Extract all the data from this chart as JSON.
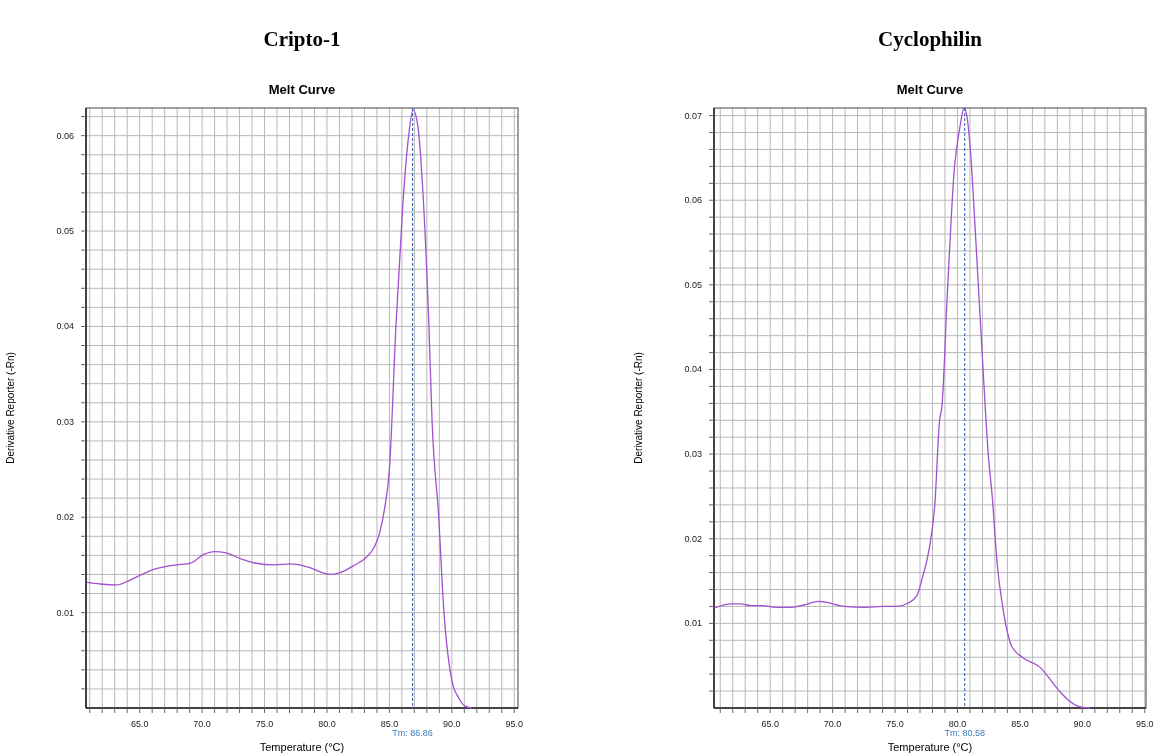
{
  "chart_data": [
    {
      "type": "line",
      "title": "Cripto-1",
      "subtitle": "Melt Curve",
      "xlabel": "Temperature (°C)",
      "ylabel": "Derivative Reporter (-Rn)",
      "grid": true,
      "xlim": [
        60.7,
        95.3
      ],
      "ylim": [
        0,
        0.0629
      ],
      "xticks": [
        {
          "value": 61,
          "label": null
        },
        {
          "value": 62,
          "label": null
        },
        {
          "value": 63,
          "label": null
        },
        {
          "value": 64,
          "label": null
        },
        {
          "value": 65,
          "label": "65.0"
        },
        {
          "value": 66,
          "label": null
        },
        {
          "value": 67,
          "label": null
        },
        {
          "value": 68,
          "label": null
        },
        {
          "value": 69,
          "label": null
        },
        {
          "value": 70,
          "label": "70.0"
        },
        {
          "value": 71,
          "label": null
        },
        {
          "value": 72,
          "label": null
        },
        {
          "value": 73,
          "label": null
        },
        {
          "value": 74,
          "label": null
        },
        {
          "value": 75,
          "label": "75.0"
        },
        {
          "value": 76,
          "label": null
        },
        {
          "value": 77,
          "label": null
        },
        {
          "value": 78,
          "label": null
        },
        {
          "value": 79,
          "label": null
        },
        {
          "value": 80,
          "label": "80.0"
        },
        {
          "value": 81,
          "label": null
        },
        {
          "value": 82,
          "label": null
        },
        {
          "value": 83,
          "label": null
        },
        {
          "value": 84,
          "label": null
        },
        {
          "value": 85,
          "label": "85.0"
        },
        {
          "value": 86,
          "label": null
        },
        {
          "value": 87,
          "label": null
        },
        {
          "value": 88,
          "label": null
        },
        {
          "value": 89,
          "label": null
        },
        {
          "value": 90,
          "label": "90.0"
        },
        {
          "value": 91,
          "label": null
        },
        {
          "value": 92,
          "label": null
        },
        {
          "value": 93,
          "label": null
        },
        {
          "value": 94,
          "label": null
        },
        {
          "value": 95,
          "label": "95.0"
        }
      ],
      "yticks": [
        {
          "value": 0.002,
          "label": null
        },
        {
          "value": 0.004,
          "label": null
        },
        {
          "value": 0.006,
          "label": null
        },
        {
          "value": 0.008,
          "label": null
        },
        0.01,
        {
          "value": 0.012,
          "label": null
        },
        {
          "value": 0.014,
          "label": null
        },
        {
          "value": 0.016,
          "label": null
        },
        {
          "value": 0.018,
          "label": null
        },
        0.02,
        {
          "value": 0.022,
          "label": null
        },
        {
          "value": 0.024,
          "label": null
        },
        {
          "value": 0.026,
          "label": null
        },
        {
          "value": 0.028,
          "label": null
        },
        0.03,
        {
          "value": 0.032,
          "label": null
        },
        {
          "value": 0.034,
          "label": null
        },
        {
          "value": 0.036,
          "label": null
        },
        {
          "value": 0.038,
          "label": null
        },
        0.04,
        {
          "value": 0.042,
          "label": null
        },
        {
          "value": 0.044,
          "label": null
        },
        {
          "value": 0.046,
          "label": null
        },
        {
          "value": 0.048,
          "label": null
        },
        0.05,
        {
          "value": 0.052,
          "label": null
        },
        {
          "value": 0.054,
          "label": null
        },
        {
          "value": 0.056,
          "label": null
        },
        {
          "value": 0.058,
          "label": null
        },
        0.06,
        {
          "value": 0.062,
          "label": null
        }
      ],
      "ref_lines": [
        {
          "axis": "x",
          "value": 86.86,
          "label": "Tm: 86.86",
          "color": "#2a5db0",
          "line_style": "dashed"
        }
      ],
      "series": [
        {
          "color": "#a050d0",
          "x": [
            60.71,
            61.84,
            63.16,
            64.21,
            65.0,
            66.32,
            67.89,
            69.08,
            70.13,
            71.0,
            71.84,
            73.16,
            74.21,
            75.79,
            77.1,
            78.42,
            80.26,
            81.05,
            82.1,
            83.16,
            83.76,
            84.21,
            84.6,
            85.0,
            85.53,
            86.05,
            86.5,
            86.89,
            87.29,
            87.63,
            88.16,
            88.42,
            88.95,
            89.34,
            90.0,
            90.53,
            91.05,
            91.58
          ],
          "values": [
            0.0132,
            0.013,
            0.0129,
            0.0134,
            0.0139,
            0.0146,
            0.015,
            0.0152,
            0.0161,
            0.0164,
            0.0163,
            0.0156,
            0.0152,
            0.015,
            0.0151,
            0.0148,
            0.014,
            0.0142,
            0.0149,
            0.0158,
            0.0168,
            0.0183,
            0.0208,
            0.025,
            0.0402,
            0.0522,
            0.0595,
            0.0627,
            0.0609,
            0.0553,
            0.0402,
            0.03,
            0.02,
            0.0106,
            0.0029,
            0.0011,
            0.0002,
            0.0
          ]
        }
      ]
    },
    {
      "type": "line",
      "title": "Cyclophilin",
      "subtitle": "Melt Curve",
      "xlabel": "Temperature (°C)",
      "ylabel": "Derivative Reporter (-Rn)",
      "grid": true,
      "xlim": [
        60.5,
        95.1
      ],
      "ylim": [
        0,
        0.0709
      ],
      "xticks": [
        {
          "value": 61,
          "label": null
        },
        {
          "value": 62,
          "label": null
        },
        {
          "value": 63,
          "label": null
        },
        {
          "value": 64,
          "label": null
        },
        {
          "value": 65,
          "label": "65.0"
        },
        {
          "value": 66,
          "label": null
        },
        {
          "value": 67,
          "label": null
        },
        {
          "value": 68,
          "label": null
        },
        {
          "value": 69,
          "label": null
        },
        {
          "value": 70,
          "label": "70.0"
        },
        {
          "value": 71,
          "label": null
        },
        {
          "value": 72,
          "label": null
        },
        {
          "value": 73,
          "label": null
        },
        {
          "value": 74,
          "label": null
        },
        {
          "value": 75,
          "label": "75.0"
        },
        {
          "value": 76,
          "label": null
        },
        {
          "value": 77,
          "label": null
        },
        {
          "value": 78,
          "label": null
        },
        {
          "value": 79,
          "label": null
        },
        {
          "value": 80,
          "label": "80.0"
        },
        {
          "value": 81,
          "label": null
        },
        {
          "value": 82,
          "label": null
        },
        {
          "value": 83,
          "label": null
        },
        {
          "value": 84,
          "label": null
        },
        {
          "value": 85,
          "label": "85.0"
        },
        {
          "value": 86,
          "label": null
        },
        {
          "value": 87,
          "label": null
        },
        {
          "value": 88,
          "label": null
        },
        {
          "value": 89,
          "label": null
        },
        {
          "value": 90,
          "label": "90.0"
        },
        {
          "value": 91,
          "label": null
        },
        {
          "value": 92,
          "label": null
        },
        {
          "value": 93,
          "label": null
        },
        {
          "value": 94,
          "label": null
        },
        {
          "value": 95,
          "label": "95.0"
        }
      ],
      "yticks": [
        {
          "value": 0.002,
          "label": null
        },
        {
          "value": 0.004,
          "label": null
        },
        {
          "value": 0.006,
          "label": null
        },
        {
          "value": 0.008,
          "label": null
        },
        0.01,
        {
          "value": 0.012,
          "label": null
        },
        {
          "value": 0.014,
          "label": null
        },
        {
          "value": 0.016,
          "label": null
        },
        {
          "value": 0.018,
          "label": null
        },
        0.02,
        {
          "value": 0.022,
          "label": null
        },
        {
          "value": 0.024,
          "label": null
        },
        {
          "value": 0.026,
          "label": null
        },
        {
          "value": 0.028,
          "label": null
        },
        0.03,
        {
          "value": 0.032,
          "label": null
        },
        {
          "value": 0.034,
          "label": null
        },
        {
          "value": 0.036,
          "label": null
        },
        {
          "value": 0.038,
          "label": null
        },
        0.04,
        {
          "value": 0.042,
          "label": null
        },
        {
          "value": 0.044,
          "label": null
        },
        {
          "value": 0.046,
          "label": null
        },
        {
          "value": 0.048,
          "label": null
        },
        0.05,
        {
          "value": 0.052,
          "label": null
        },
        {
          "value": 0.054,
          "label": null
        },
        {
          "value": 0.056,
          "label": null
        },
        {
          "value": 0.058,
          "label": null
        },
        0.06,
        {
          "value": 0.062,
          "label": null
        },
        {
          "value": 0.064,
          "label": null
        },
        {
          "value": 0.066,
          "label": null
        },
        {
          "value": 0.068,
          "label": null
        },
        0.07
      ],
      "ref_lines": [
        {
          "axis": "x",
          "value": 80.58,
          "label": "Tm: 80.58",
          "color": "#2a5db0",
          "line_style": "dashed"
        }
      ],
      "series": [
        {
          "color": "#a050d0",
          "x": [
            60.51,
            61.88,
            62.6,
            63.46,
            64.3,
            65.46,
            66.74,
            67.75,
            68.89,
            69.46,
            70.89,
            72.6,
            74.04,
            75.18,
            76.04,
            76.76,
            77.19,
            77.76,
            78.19,
            78.56,
            78.76,
            79.19,
            79.76,
            80.19,
            80.53,
            80.76,
            81.05,
            81.48,
            82.05,
            82.48,
            82.76,
            83.19,
            83.62,
            84.34,
            85.19,
            86.62,
            88.05,
            88.91,
            89.91,
            90.63
          ],
          "values": [
            0.0118,
            0.0123,
            0.0123,
            0.0121,
            0.0121,
            0.0119,
            0.0119,
            0.0122,
            0.0126,
            0.0125,
            0.012,
            0.0119,
            0.012,
            0.012,
            0.0124,
            0.0133,
            0.0154,
            0.019,
            0.0241,
            0.0339,
            0.0357,
            0.049,
            0.0639,
            0.0686,
            0.0709,
            0.0699,
            0.0656,
            0.055,
            0.04,
            0.0297,
            0.0254,
            0.0169,
            0.012,
            0.0073,
            0.006,
            0.0048,
            0.0022,
            0.0009,
            0.0001,
            0.0
          ]
        }
      ]
    }
  ]
}
